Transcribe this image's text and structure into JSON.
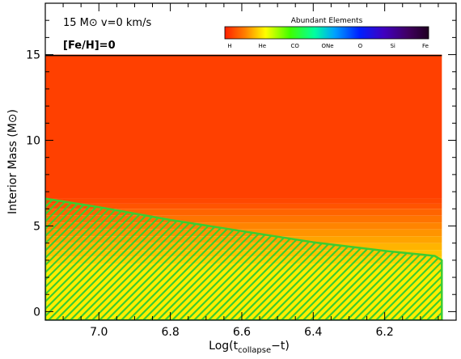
{
  "chart_data": {
    "type": "area",
    "ylabel": "Interior Mass (M⊙)",
    "xlabel_main": "Log(t",
    "xlabel_sub": "collapse",
    "xlabel_tail": "−t)",
    "xlim": [
      7.15,
      6.0
    ],
    "ylim": [
      -0.5,
      18
    ],
    "x_ticks": [
      7.0,
      6.8,
      6.6,
      6.4,
      6.2
    ],
    "x_tick_labels": [
      "7.0",
      "6.8",
      "6.6",
      "6.4",
      "6.2"
    ],
    "y_ticks": [
      0,
      5,
      10,
      15
    ],
    "y_tick_labels": [
      "0",
      "5",
      "10",
      "15"
    ],
    "annotations": {
      "line1": "15 M⊙  v=0 km/s",
      "line2": "[Fe/H]=0"
    },
    "colorbar": {
      "title": "Abundant Elements",
      "labels": [
        "H",
        "He",
        "CO",
        "ONe",
        "O",
        "Si",
        "Fe"
      ]
    },
    "star_surface_mass": 14.95,
    "star_x_extent": [
      7.15,
      6.04
    ],
    "composition_bands": [
      {
        "y_from": 6.6,
        "y_to": 15.0,
        "element": "H",
        "color": "#ff4000"
      },
      {
        "y_from": 6.3,
        "y_to": 6.6,
        "element": "H",
        "color": "#ff4800"
      },
      {
        "y_from": 6.0,
        "y_to": 6.3,
        "element": "H",
        "color": "#ff5400"
      },
      {
        "y_from": 5.6,
        "y_to": 6.0,
        "element": "H",
        "color": "#ff6400"
      },
      {
        "y_from": 5.2,
        "y_to": 5.6,
        "element": "H/He",
        "color": "#ff7400"
      },
      {
        "y_from": 4.8,
        "y_to": 5.2,
        "element": "H/He",
        "color": "#ff8400"
      },
      {
        "y_from": 4.4,
        "y_to": 4.8,
        "element": "H/He",
        "color": "#ff9400"
      },
      {
        "y_from": 4.0,
        "y_to": 4.4,
        "element": "H/He",
        "color": "#ffa400"
      },
      {
        "y_from": 3.6,
        "y_to": 4.0,
        "element": "H/He",
        "color": "#ffb400"
      },
      {
        "y_from": 3.2,
        "y_to": 3.6,
        "element": "He",
        "color": "#ffc400"
      },
      {
        "y_from": 2.8,
        "y_to": 3.2,
        "element": "He",
        "color": "#ffd400"
      },
      {
        "y_from": 2.4,
        "y_to": 2.8,
        "element": "He",
        "color": "#ffe400"
      },
      {
        "y_from": -0.5,
        "y_to": 2.4,
        "element": "He",
        "color": "#ffee00"
      }
    ],
    "convective_zone": {
      "color": "#3ccc30",
      "upper_boundary": {
        "x": [
          7.15,
          7.0,
          6.8,
          6.6,
          6.4,
          6.2,
          6.06,
          6.04
        ],
        "y": [
          6.6,
          6.1,
          5.35,
          4.7,
          4.05,
          3.55,
          3.25,
          3.0
        ]
      },
      "bottom": -0.5
    }
  }
}
